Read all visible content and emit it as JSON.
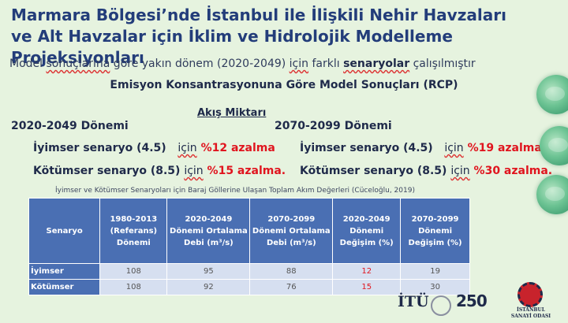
{
  "title": "Marmara Bölgesi’nde İstanbul ile İlişkili Nehir Havzaları ve Alt Havzalar için İklim ve Hidrolojik Modelleme Projeksiyonları",
  "subtitle": {
    "part1": "Model ",
    "part2": "sonuçlarına",
    "part3": " göre yakın dönem (2020-2049) ",
    "part4": "için",
    "part5": " farklı ",
    "part6": "senaryolar",
    "part7": " çalışılmıştır"
  },
  "rcp_heading": "Emisyon Konsantrasyonuna Göre Model Sonuçları (RCP)",
  "flow_heading": "Akış Miktarı",
  "period1": {
    "label": "2020-2049 Dönemi",
    "optimistic": {
      "label": "İyimser senaryo (4.5)",
      "for": "için",
      "value": "%12 azalma"
    },
    "pessimistic": {
      "label": "Kötümser senaryo (8.5)",
      "for": "için",
      "value": "%15 azalma."
    }
  },
  "period2": {
    "label": "2070-2099 Dönemi",
    "optimistic": {
      "label": "İyimser senaryo (4.5)",
      "for": "için",
      "value": "%19 azalma"
    },
    "pessimistic": {
      "label": "Kötümser senaryo (8.5)",
      "for": "için",
      "value": "%30 azalma."
    }
  },
  "caption": "İyimser ve Kötümser Senaryoları için Baraj Göllerine Ulaşan Toplam Akım Değerleri (Cüceloğlu, 2019)",
  "table": {
    "headers": [
      "Senaryo",
      "1980-2013 (Referans) Dönemi",
      "2020-2049 Dönemi Ortalama Debi (m³/s)",
      "2070-2099 Dönemi Ortalama Debi (m³/s)",
      "2020-2049 Dönemi Değişim (%)",
      "2070-2099 Dönemi Değişim (%)"
    ],
    "rows": [
      [
        "İyimser",
        "108",
        "95",
        "88",
        "12",
        "19"
      ],
      [
        "Kötümser",
        "108",
        "92",
        "76",
        "15",
        "30"
      ]
    ]
  },
  "logos": {
    "itu": "İTÜ",
    "anniversary": "250",
    "iso_line1": "İSTANBUL",
    "iso_line2": "SANAYİ ODASI"
  },
  "colors": {
    "title": "#233d7a",
    "accent_red": "#e0141e",
    "table_header": "#4a6fb3",
    "table_cell": "#d6dff0",
    "background": "#e6f3df"
  }
}
